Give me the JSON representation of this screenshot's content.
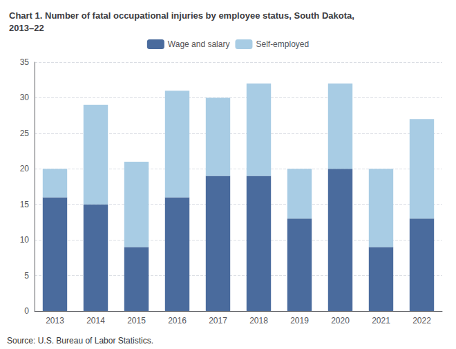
{
  "chart_data": {
    "type": "bar",
    "title": "Chart 1. Number of fatal occupational injuries by employee status, South Dakota,\n2013–22",
    "categories": [
      "2013",
      "2014",
      "2015",
      "2016",
      "2017",
      "2018",
      "2019",
      "2020",
      "2021",
      "2022"
    ],
    "series": [
      {
        "name": "Wage and salary",
        "color": "#4a6b9d",
        "values": [
          16,
          15,
          9,
          16,
          19,
          19,
          13,
          20,
          9,
          13
        ]
      },
      {
        "name": "Self-employed",
        "color": "#a8cce4",
        "values": [
          4,
          14,
          12,
          15,
          11,
          13,
          7,
          12,
          11,
          14
        ]
      }
    ],
    "stacked": true,
    "ylim": [
      0,
      35
    ],
    "yticks": [
      0,
      5,
      10,
      15,
      20,
      25,
      30,
      35
    ],
    "grid": true,
    "legend": "top",
    "annotations": [
      "Source: U.S. Bureau of Labor Statistics."
    ]
  }
}
